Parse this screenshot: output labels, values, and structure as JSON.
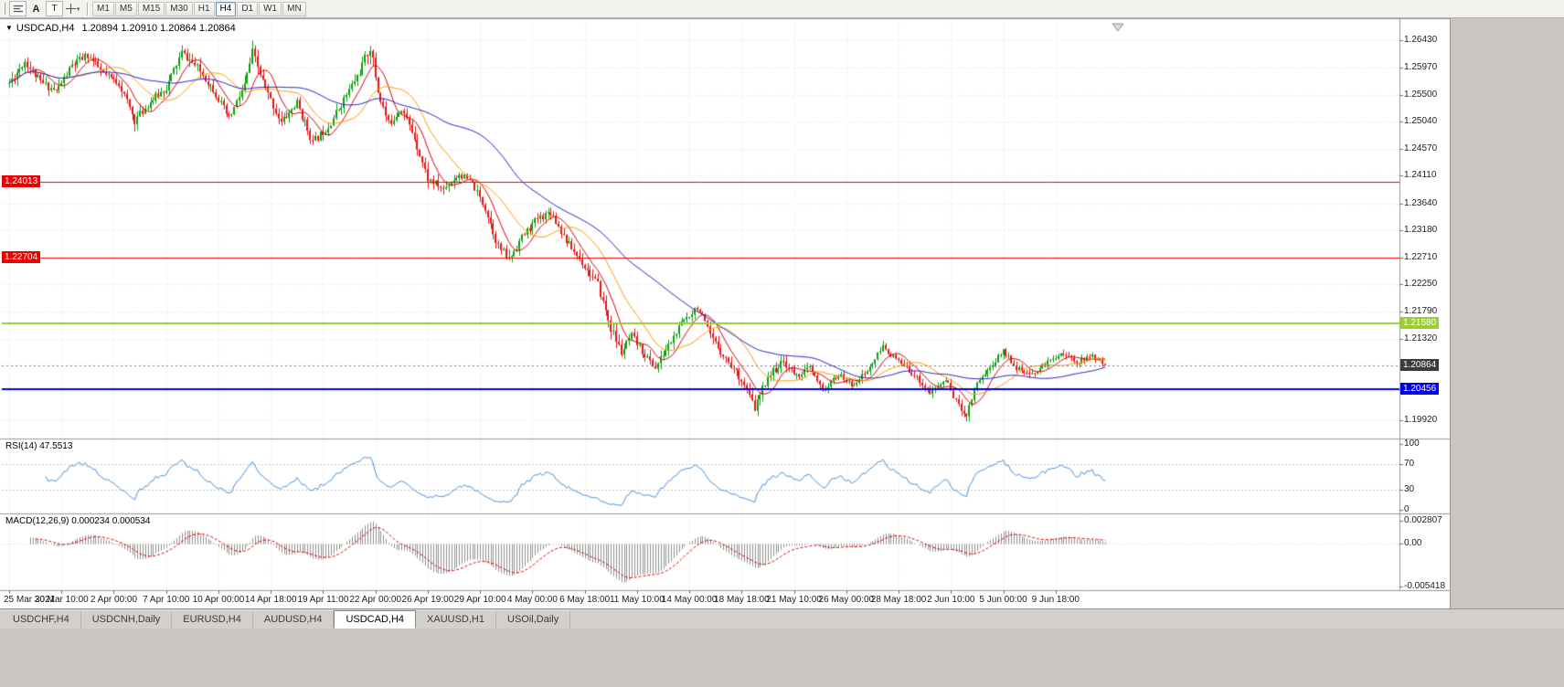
{
  "toolbar": {
    "tool_a": "A",
    "tool_t": "T",
    "timeframes": [
      {
        "label": "M1",
        "active": false
      },
      {
        "label": "M5",
        "active": false
      },
      {
        "label": "M15",
        "active": false
      },
      {
        "label": "M30",
        "active": false
      },
      {
        "label": "H1",
        "active": false
      },
      {
        "label": "H4",
        "active": true
      },
      {
        "label": "D1",
        "active": false
      },
      {
        "label": "W1",
        "active": false
      },
      {
        "label": "MN",
        "active": false
      }
    ]
  },
  "chart": {
    "title": "USDCAD,H4",
    "ohlc": "1.20894 1.20910 1.20864 1.20864",
    "price_axis": [
      "1.26430",
      "1.25970",
      "1.25500",
      "1.25040",
      "1.24570",
      "1.24110",
      "1.23640",
      "1.23180",
      "1.22710",
      "1.22250",
      "1.21790",
      "1.21320",
      "1.19920"
    ],
    "date_labels": [
      "25 Mar 2021",
      "30 Mar 10:00",
      "2 Apr 00:00",
      "7 Apr 10:00",
      "10 Apr 00:00",
      "14 Apr 18:00",
      "19 Apr 11:00",
      "22 Apr 00:00",
      "26 Apr 19:00",
      "29 Apr 10:00",
      "4 May 00:00",
      "6 May 18:00",
      "11 May 10:00",
      "14 May 00:00",
      "18 May 18:00",
      "21 May 10:00",
      "26 May 00:00",
      "28 May 18:00",
      "2 Jun 10:00",
      "5 Jun 00:00",
      "9 Jun 18:00"
    ],
    "lines": [
      {
        "label": "1.24013",
        "price": 1.24013,
        "color": "#ee0000",
        "width": 1,
        "badge_side": "left"
      },
      {
        "label": "1.22704",
        "price": 1.22704,
        "color": "#ee0000",
        "width": 1,
        "badge_side": "left"
      },
      {
        "label": "1.21580",
        "price": 1.2158,
        "color": "#9acd32",
        "width": 2,
        "badge_side": "right"
      },
      {
        "label": "1.20456",
        "price": 1.20456,
        "color": "#0000ee",
        "width": 2,
        "badge_side": "right"
      }
    ],
    "current_price": {
      "label": "1.20864",
      "value": 1.20864,
      "badge_color": "#3c3c3c"
    }
  },
  "rsi": {
    "label": "RSI(14) 47.5513",
    "axis": [
      "100",
      "70",
      "30",
      "0"
    ],
    "levels": [
      70,
      30
    ],
    "line_color": "#4a90d9"
  },
  "macd": {
    "label": "MACD(12,26,9) 0.000234 0.000534",
    "axis": [
      "0.002807",
      "0.00",
      "-0.005418"
    ],
    "vmax": 0.002807,
    "vmin": -0.005418,
    "histogram_color": "#8f8f8f",
    "signal_color": "#e00000"
  },
  "tabs": [
    {
      "label": "USDCHF,H4",
      "active": false
    },
    {
      "label": "USDCNH,Daily",
      "active": false
    },
    {
      "label": "EURUSD,H4",
      "active": false
    },
    {
      "label": "AUDUSD,H4",
      "active": false
    },
    {
      "label": "USDCAD,H4",
      "active": true
    },
    {
      "label": "XAUUSD,H1",
      "active": false
    },
    {
      "label": "USOil,Daily",
      "active": false
    }
  ],
  "chart_data": {
    "type": "candlestick",
    "symbol": "USDCAD",
    "timeframe": "H4",
    "bars": 420,
    "visible_price_range": [
      1.1967,
      1.2678
    ],
    "up_color": "#0aa10a",
    "down_color": "#e81414",
    "moving_averages": [
      {
        "period": 9,
        "color": "#e00000"
      },
      {
        "period": 21,
        "color": "#ff9c00"
      },
      {
        "period": 55,
        "color": "#2424c8"
      }
    ],
    "indicators": {
      "rsi_period": 14,
      "macd": [
        12,
        26,
        9
      ]
    },
    "final_close": 1.20864,
    "seed": 11,
    "close_waypoints": [
      [
        0,
        1.257,
        0.0028
      ],
      [
        6,
        1.2608,
        0.0026
      ],
      [
        12,
        1.2572,
        0.0024
      ],
      [
        18,
        1.2556,
        0.0024
      ],
      [
        24,
        1.26,
        0.0026
      ],
      [
        30,
        1.2618,
        0.0024
      ],
      [
        36,
        1.2586,
        0.0022
      ],
      [
        42,
        1.257,
        0.0022
      ],
      [
        48,
        1.2506,
        0.0026
      ],
      [
        54,
        1.2538,
        0.0024
      ],
      [
        60,
        1.2562,
        0.0024
      ],
      [
        66,
        1.2622,
        0.0026
      ],
      [
        72,
        1.2596,
        0.0024
      ],
      [
        78,
        1.256,
        0.0024
      ],
      [
        84,
        1.2508,
        0.0026
      ],
      [
        90,
        1.2566,
        0.0028
      ],
      [
        93,
        1.2622,
        0.003
      ],
      [
        98,
        1.256,
        0.0026
      ],
      [
        104,
        1.2502,
        0.0026
      ],
      [
        110,
        1.2536,
        0.0024
      ],
      [
        116,
        1.2468,
        0.0026
      ],
      [
        122,
        1.2496,
        0.0024
      ],
      [
        128,
        1.2542,
        0.0024
      ],
      [
        134,
        1.259,
        0.0026
      ],
      [
        138,
        1.2632,
        0.0034
      ],
      [
        141,
        1.2556,
        0.0032
      ],
      [
        145,
        1.25,
        0.0028
      ],
      [
        150,
        1.2528,
        0.0024
      ],
      [
        155,
        1.2476,
        0.0024
      ],
      [
        160,
        1.2406,
        0.0026
      ],
      [
        166,
        1.2388,
        0.0022
      ],
      [
        172,
        1.2414,
        0.0022
      ],
      [
        177,
        1.2398,
        0.0022
      ],
      [
        182,
        1.2356,
        0.0024
      ],
      [
        187,
        1.229,
        0.0028
      ],
      [
        191,
        1.2268,
        0.0026
      ],
      [
        196,
        1.2306,
        0.0024
      ],
      [
        202,
        1.2338,
        0.0024
      ],
      [
        207,
        1.235,
        0.0022
      ],
      [
        213,
        1.23,
        0.0022
      ],
      [
        219,
        1.2262,
        0.0022
      ],
      [
        225,
        1.2224,
        0.0026
      ],
      [
        230,
        1.215,
        0.003
      ],
      [
        234,
        1.2108,
        0.0028
      ],
      [
        238,
        1.2136,
        0.0024
      ],
      [
        243,
        1.2104,
        0.0022
      ],
      [
        247,
        1.2082,
        0.0022
      ],
      [
        252,
        1.212,
        0.0022
      ],
      [
        258,
        1.2164,
        0.0024
      ],
      [
        263,
        1.2188,
        0.0026
      ],
      [
        268,
        1.2136,
        0.0024
      ],
      [
        274,
        1.2098,
        0.0022
      ],
      [
        280,
        1.2062,
        0.0022
      ],
      [
        285,
        1.2012,
        0.0026
      ],
      [
        290,
        1.2068,
        0.0024
      ],
      [
        296,
        1.2092,
        0.002
      ],
      [
        301,
        1.2068,
        0.0018
      ],
      [
        306,
        1.2082,
        0.0018
      ],
      [
        311,
        1.2042,
        0.0018
      ],
      [
        317,
        1.207,
        0.0016
      ],
      [
        322,
        1.2052,
        0.0016
      ],
      [
        328,
        1.2076,
        0.0016
      ],
      [
        334,
        1.2118,
        0.0018
      ],
      [
        340,
        1.2092,
        0.0016
      ],
      [
        346,
        1.207,
        0.0016
      ],
      [
        352,
        1.2038,
        0.0016
      ],
      [
        358,
        1.2062,
        0.0016
      ],
      [
        363,
        1.2016,
        0.002
      ],
      [
        366,
        1.2002,
        0.0018
      ],
      [
        370,
        1.2058,
        0.0018
      ],
      [
        375,
        1.2082,
        0.0016
      ],
      [
        380,
        1.2112,
        0.0016
      ],
      [
        385,
        1.2082,
        0.0014
      ],
      [
        390,
        1.2068,
        0.0014
      ],
      [
        396,
        1.2088,
        0.0014
      ],
      [
        402,
        1.2108,
        0.0014
      ],
      [
        408,
        1.2092,
        0.0014
      ],
      [
        414,
        1.2102,
        0.0013
      ],
      [
        419,
        1.20864,
        0.0012
      ]
    ]
  }
}
